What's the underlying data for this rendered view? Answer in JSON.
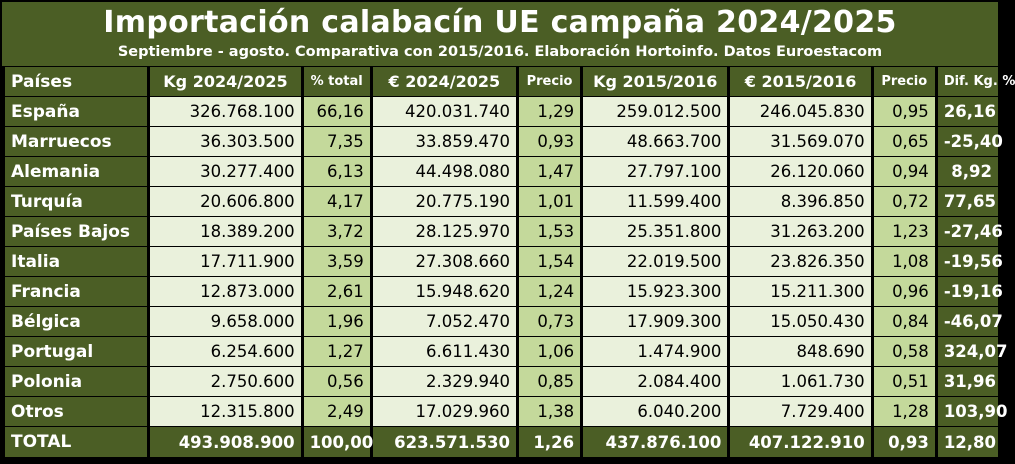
{
  "title": "Importación calabacín UE campaña 2024/2025",
  "subtitle": "Septiembre - agosto. Comparativa con 2015/2016. Elaboración Hortoinfo. Datos Euroestacom",
  "colors": {
    "dark_green": "#4b5e25",
    "light": "#eaf1dc",
    "mid": "#c4d99b"
  },
  "columns": [
    "Países",
    "Kg 2024/2025",
    "% total",
    "€ 2024/2025",
    "Precio",
    "Kg 2015/2016",
    "€ 2015/2016",
    "Precio",
    "Dif. Kg. %"
  ],
  "rows": [
    [
      "España",
      "326.768.100",
      "66,16",
      "420.031.740",
      "1,29",
      "259.012.500",
      "246.045.830",
      "0,95",
      "26,16"
    ],
    [
      "Marruecos",
      "36.303.500",
      "7,35",
      "33.859.470",
      "0,93",
      "48.663.700",
      "31.569.070",
      "0,65",
      "-25,40"
    ],
    [
      "Alemania",
      "30.277.400",
      "6,13",
      "44.498.080",
      "1,47",
      "27.797.100",
      "26.120.060",
      "0,94",
      "8,92"
    ],
    [
      "Turquía",
      "20.606.800",
      "4,17",
      "20.775.190",
      "1,01",
      "11.599.400",
      "8.396.850",
      "0,72",
      "77,65"
    ],
    [
      "Países Bajos",
      "18.389.200",
      "3,72",
      "28.125.970",
      "1,53",
      "25.351.800",
      "31.263.200",
      "1,23",
      "-27,46"
    ],
    [
      "Italia",
      "17.711.900",
      "3,59",
      "27.308.660",
      "1,54",
      "22.019.500",
      "23.826.350",
      "1,08",
      "-19,56"
    ],
    [
      "Francia",
      "12.873.000",
      "2,61",
      "15.948.620",
      "1,24",
      "15.923.300",
      "15.211.300",
      "0,96",
      "-19,16"
    ],
    [
      "Bélgica",
      "9.658.000",
      "1,96",
      "7.052.470",
      "0,73",
      "17.909.300",
      "15.050.430",
      "0,84",
      "-46,07"
    ],
    [
      "Portugal",
      "6.254.600",
      "1,27",
      "6.611.430",
      "1,06",
      "1.474.900",
      "848.690",
      "0,58",
      "324,07"
    ],
    [
      "Polonia",
      "2.750.600",
      "0,56",
      "2.329.940",
      "0,85",
      "2.084.400",
      "1.061.730",
      "0,51",
      "31,96"
    ],
    [
      "Otros",
      "12.315.800",
      "2,49",
      "17.029.960",
      "1,38",
      "6.040.200",
      "7.729.400",
      "1,28",
      "103,90"
    ]
  ],
  "total": [
    "TOTAL",
    "493.908.900",
    "100,00",
    "623.571.530",
    "1,26",
    "437.876.100",
    "407.122.910",
    "0,93",
    "12,80"
  ]
}
